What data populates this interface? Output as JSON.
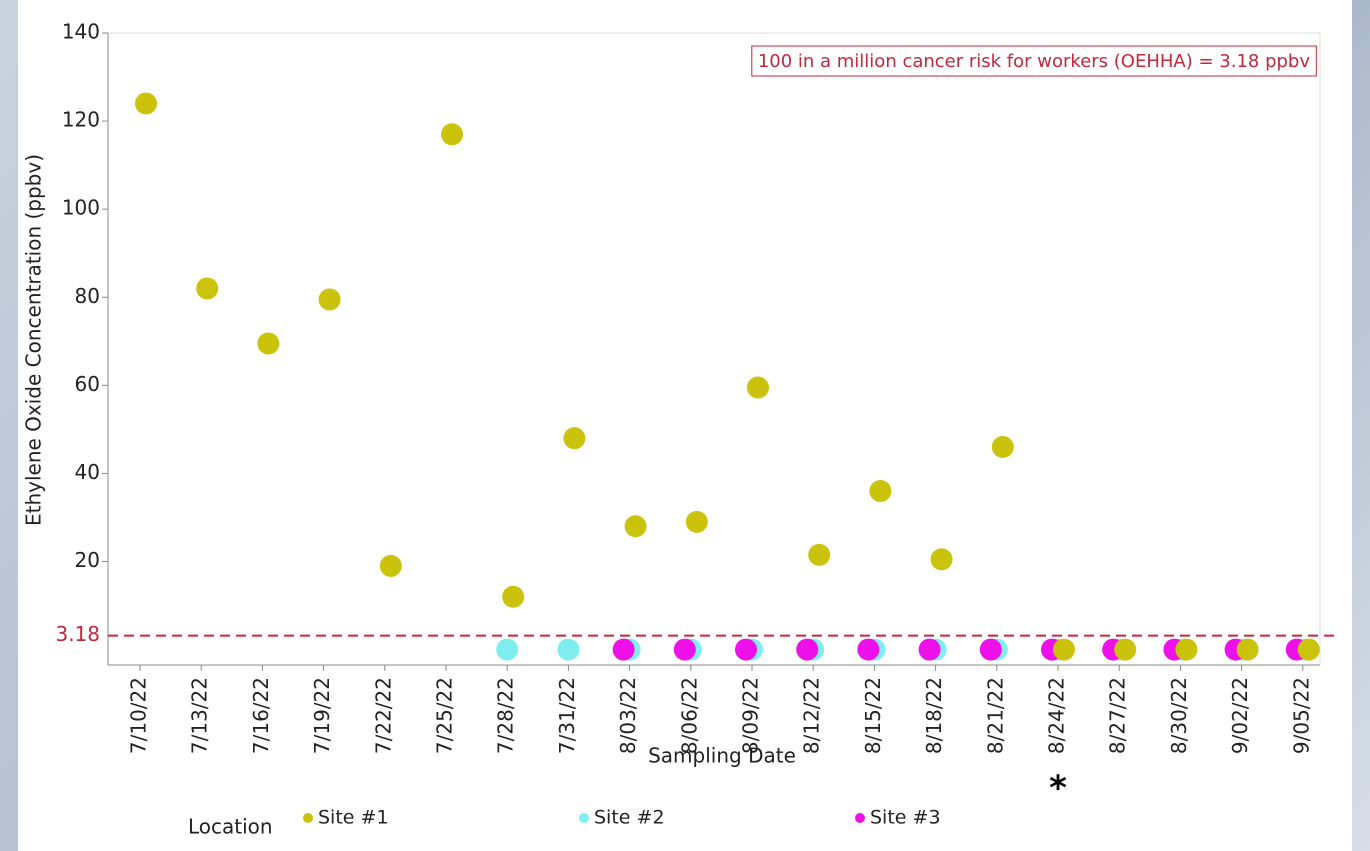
{
  "chart_data": {
    "type": "scatter",
    "x_label": "Sampling Date",
    "y_label": "Ethylene Oxide Concentration (ppbv)",
    "categories": [
      "7/10/22",
      "7/13/22",
      "7/16/22",
      "7/19/22",
      "7/22/22",
      "7/25/22",
      "7/28/22",
      "7/31/22",
      "8/03/22",
      "8/06/22",
      "8/09/22",
      "8/12/22",
      "8/15/22",
      "8/18/22",
      "8/21/22",
      "8/24/22",
      "8/27/22",
      "8/30/22",
      "9/02/22",
      "9/05/22"
    ],
    "series": [
      {
        "name": "Site #1",
        "color": "#cbc20c",
        "values": [
          124,
          82,
          69.5,
          79.5,
          19,
          117,
          12,
          48,
          28,
          29,
          59.5,
          21.5,
          36,
          20.5,
          46,
          0,
          0,
          0,
          0,
          0
        ]
      },
      {
        "name": "Site #2",
        "color": "#80eef0",
        "values": [
          null,
          null,
          null,
          null,
          null,
          null,
          0,
          0,
          0,
          0,
          0,
          0,
          0,
          0,
          0,
          0,
          0,
          0,
          0,
          0
        ]
      },
      {
        "name": "Site #3",
        "color": "#ee10e8",
        "values": [
          null,
          null,
          null,
          null,
          null,
          null,
          null,
          null,
          0,
          0,
          0,
          0,
          0,
          0,
          0,
          0,
          0,
          0,
          0,
          0
        ]
      }
    ],
    "legend_title": "Location",
    "ylim": [
      -3.5,
      140
    ],
    "yticks": [
      20,
      40,
      60,
      80,
      100,
      120,
      140
    ],
    "reference_line": {
      "value": 3.18,
      "color": "#c0283c",
      "text": "100 in a million cancer risk for workers (OEHHA) = 3.18 ppbv"
    },
    "annotations": [
      {
        "text": "*",
        "category": "8/24/22"
      }
    ]
  }
}
